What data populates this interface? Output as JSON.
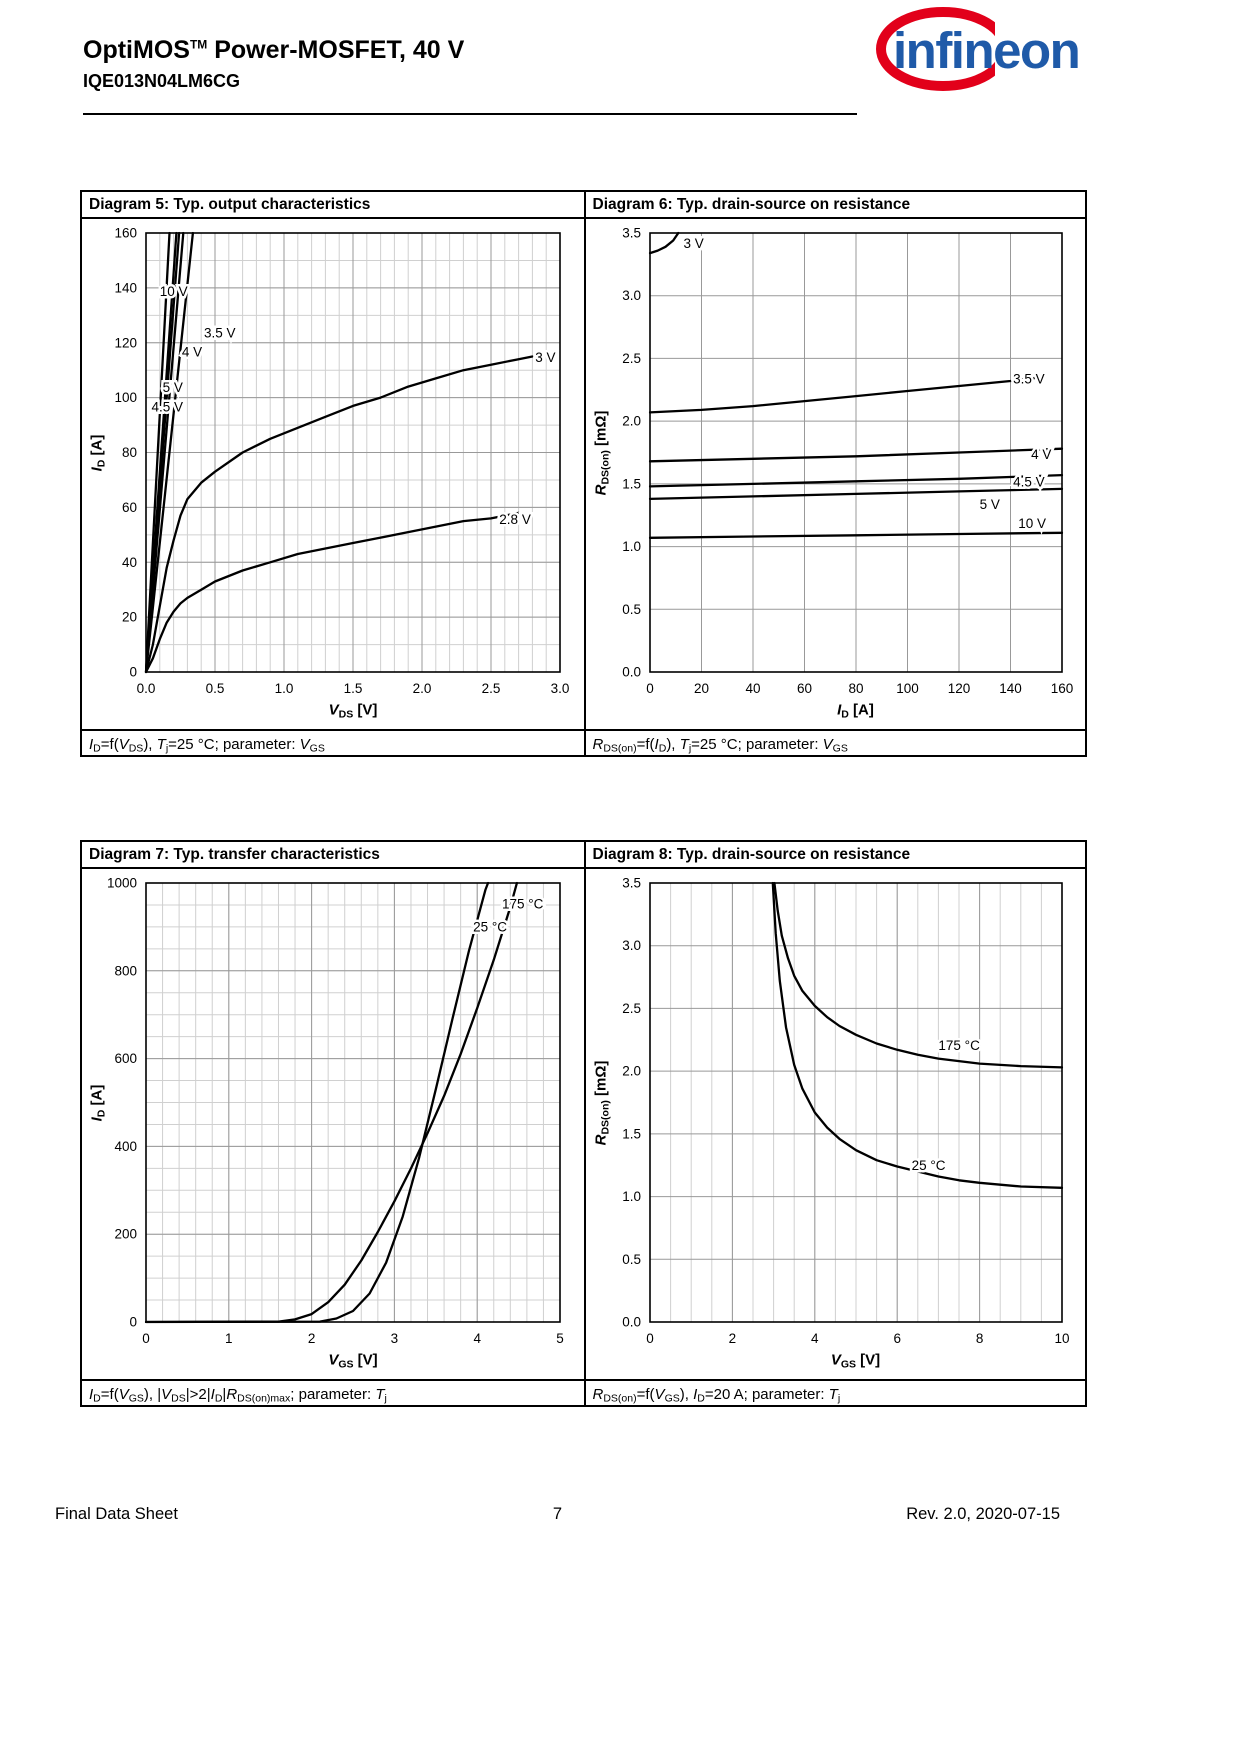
{
  "header": {
    "product_family": "OptiMOS",
    "trademark": "TM",
    "title_suffix": " Power-MOSFET, 40 V",
    "part_number": "IQE013N04LM6CG",
    "logo": {
      "text": "infineon",
      "blue": "#1F5AA8",
      "red": "#E2001A"
    }
  },
  "footer": {
    "left": "Final Data Sheet",
    "page_number": "7",
    "right": "Rev. 2.0,  2020-07-15"
  },
  "chart_data": [
    {
      "id": "diagram-5",
      "type": "line",
      "title": "Diagram 5: Typ. output characteristics",
      "caption": "*I*_D_=f(*V*_DS_), *T*_j_=25 °C; parameter: *V*_GS_",
      "xlabel": "*V*_DS_ [V]",
      "ylabel": "*I*_D_ [A]",
      "xlim": [
        0,
        3
      ],
      "ylim": [
        0,
        160
      ],
      "xticks": [
        0,
        0.5,
        1,
        1.5,
        2,
        2.5,
        3
      ],
      "xtick_labels": [
        "0.0",
        "0.5",
        "1.0",
        "1.5",
        "2.0",
        "2.5",
        "3.0"
      ],
      "yticks": [
        0,
        20,
        40,
        60,
        80,
        100,
        120,
        140,
        160
      ],
      "ytick_labels": [
        "0",
        "20",
        "40",
        "60",
        "80",
        "100",
        "120",
        "140",
        "160"
      ],
      "xminor": 0.1,
      "yminor": 10,
      "grid": true,
      "legend": "inline-labels",
      "series": [
        {
          "name": "10 V",
          "points": [
            [
              0,
              0
            ],
            [
              0.17,
              160
            ]
          ]
        },
        {
          "name": "5 V",
          "points": [
            [
              0,
              0
            ],
            [
              0.22,
              160
            ]
          ]
        },
        {
          "name": "4.5 V",
          "points": [
            [
              0,
              0
            ],
            [
              0.24,
              160
            ]
          ]
        },
        {
          "name": "4 V",
          "points": [
            [
              0,
              0
            ],
            [
              0.27,
              160
            ]
          ]
        },
        {
          "name": "3.5 V",
          "points": [
            [
              0,
              0
            ],
            [
              0.34,
              160
            ]
          ]
        },
        {
          "name": "3 V",
          "points": [
            [
              0,
              0
            ],
            [
              0.05,
              10
            ],
            [
              0.1,
              24
            ],
            [
              0.15,
              38
            ],
            [
              0.2,
              48
            ],
            [
              0.25,
              57
            ],
            [
              0.3,
              63
            ],
            [
              0.4,
              69
            ],
            [
              0.5,
              73
            ],
            [
              0.7,
              80
            ],
            [
              0.9,
              85
            ],
            [
              1.1,
              89
            ],
            [
              1.3,
              93
            ],
            [
              1.5,
              97
            ],
            [
              1.7,
              100
            ],
            [
              1.9,
              104
            ],
            [
              2.1,
              107
            ],
            [
              2.3,
              110
            ],
            [
              2.5,
              112
            ],
            [
              2.7,
              114
            ],
            [
              2.8,
              115
            ]
          ]
        },
        {
          "name": "2.8 V",
          "points": [
            [
              0,
              0
            ],
            [
              0.05,
              5
            ],
            [
              0.1,
              12
            ],
            [
              0.15,
              18
            ],
            [
              0.2,
              22
            ],
            [
              0.25,
              25
            ],
            [
              0.3,
              27
            ],
            [
              0.4,
              30
            ],
            [
              0.5,
              33
            ],
            [
              0.7,
              37
            ],
            [
              0.9,
              40
            ],
            [
              1.1,
              43
            ],
            [
              1.3,
              45
            ],
            [
              1.5,
              47
            ],
            [
              1.7,
              49
            ],
            [
              1.9,
              51
            ],
            [
              2.1,
              53
            ],
            [
              2.3,
              55
            ],
            [
              2.5,
              56
            ],
            [
              2.7,
              58
            ]
          ]
        }
      ],
      "curve_labels": [
        {
          "text": "10 V",
          "x": 0.1,
          "y": 137
        },
        {
          "text": "3.5 V",
          "x": 0.42,
          "y": 122
        },
        {
          "text": "4 V",
          "x": 0.26,
          "y": 115
        },
        {
          "text": "5 V",
          "x": 0.12,
          "y": 102
        },
        {
          "text": "4.5 V",
          "x": 0.04,
          "y": 95
        },
        {
          "text": "3 V",
          "x": 2.82,
          "y": 113
        },
        {
          "text": "2.8 V",
          "x": 2.56,
          "y": 54
        }
      ]
    },
    {
      "id": "diagram-6",
      "type": "line",
      "title": "Diagram 6: Typ. drain-source on resistance",
      "caption": "*R*_DS(on)_=f(*I*_D_), *T*_j_=25 °C; parameter: *V*_GS_",
      "xlabel": "*I*_D_ [A]",
      "ylabel": "*R*_DS(on)_ [mΩ]",
      "xlim": [
        0,
        160
      ],
      "ylim": [
        0,
        3.5
      ],
      "xticks": [
        0,
        20,
        40,
        60,
        80,
        100,
        120,
        140,
        160
      ],
      "xtick_labels": [
        "0",
        "20",
        "40",
        "60",
        "80",
        "100",
        "120",
        "140",
        "160"
      ],
      "yticks": [
        0,
        0.5,
        1,
        1.5,
        2,
        2.5,
        3,
        3.5
      ],
      "ytick_labels": [
        "0.0",
        "0.5",
        "1.0",
        "1.5",
        "2.0",
        "2.5",
        "3.0",
        "3.5"
      ],
      "grid": true,
      "legend": "inline-labels",
      "series": [
        {
          "name": "3 V",
          "points": [
            [
              0,
              3.34
            ],
            [
              3,
              3.36
            ],
            [
              6,
              3.39
            ],
            [
              9,
              3.44
            ],
            [
              11,
              3.5
            ]
          ]
        },
        {
          "name": "3.5 V",
          "points": [
            [
              0,
              2.07
            ],
            [
              20,
              2.09
            ],
            [
              40,
              2.12
            ],
            [
              60,
              2.16
            ],
            [
              80,
              2.2
            ],
            [
              100,
              2.24
            ],
            [
              120,
              2.28
            ],
            [
              140,
              2.32
            ],
            [
              152,
              2.35
            ]
          ]
        },
        {
          "name": "4 V",
          "points": [
            [
              0,
              1.68
            ],
            [
              40,
              1.7
            ],
            [
              80,
              1.72
            ],
            [
              120,
              1.75
            ],
            [
              160,
              1.78
            ]
          ]
        },
        {
          "name": "4.5 V",
          "points": [
            [
              0,
              1.48
            ],
            [
              40,
              1.5
            ],
            [
              80,
              1.52
            ],
            [
              120,
              1.54
            ],
            [
              160,
              1.57
            ]
          ]
        },
        {
          "name": "5 V",
          "points": [
            [
              0,
              1.38
            ],
            [
              40,
              1.4
            ],
            [
              80,
              1.42
            ],
            [
              120,
              1.44
            ],
            [
              160,
              1.46
            ]
          ]
        },
        {
          "name": "10 V",
          "points": [
            [
              0,
              1.07
            ],
            [
              40,
              1.08
            ],
            [
              80,
              1.09
            ],
            [
              120,
              1.1
            ],
            [
              160,
              1.11
            ]
          ]
        }
      ],
      "curve_labels": [
        {
          "text": "3 V",
          "x": 13,
          "y": 3.38
        },
        {
          "text": "3.5 V",
          "x": 141,
          "y": 2.3
        },
        {
          "text": "4 V",
          "x": 148,
          "y": 1.7
        },
        {
          "text": "4.5 V",
          "x": 141,
          "y": 1.48
        },
        {
          "text": "5 V",
          "x": 128,
          "y": 1.3
        },
        {
          "text": "10 V",
          "x": 143,
          "y": 1.15
        }
      ]
    },
    {
      "id": "diagram-7",
      "type": "line",
      "title": "Diagram 7: Typ. transfer characteristics",
      "caption": "*I*_D_=f(*V*_GS_), |*V*_DS_|>2|*I*_D_|*R*_DS(on)max_; parameter: *T*_j_",
      "xlabel": "*V*_GS_ [V]",
      "ylabel": "*I*_D_ [A]",
      "xlim": [
        0,
        5
      ],
      "ylim": [
        0,
        1000
      ],
      "xticks": [
        0,
        1,
        2,
        3,
        4,
        5
      ],
      "xtick_labels": [
        "0",
        "1",
        "2",
        "3",
        "4",
        "5"
      ],
      "yticks": [
        0,
        200,
        400,
        600,
        800,
        1000
      ],
      "ytick_labels": [
        "0",
        "200",
        "400",
        "600",
        "800",
        "1000"
      ],
      "xminor": 0.2,
      "yminor": 50,
      "grid": true,
      "legend": "inline-labels",
      "series": [
        {
          "name": "175 °C",
          "points": [
            [
              0,
              0
            ],
            [
              1.6,
              1
            ],
            [
              1.8,
              6
            ],
            [
              2.0,
              18
            ],
            [
              2.2,
              45
            ],
            [
              2.4,
              85
            ],
            [
              2.6,
              140
            ],
            [
              2.8,
              205
            ],
            [
              3.0,
              275
            ],
            [
              3.2,
              350
            ],
            [
              3.4,
              430
            ],
            [
              3.6,
              515
            ],
            [
              3.8,
              610
            ],
            [
              4.0,
              715
            ],
            [
              4.2,
              825
            ],
            [
              4.4,
              945
            ],
            [
              4.48,
              1000
            ]
          ]
        },
        {
          "name": "25 °C",
          "points": [
            [
              0,
              0
            ],
            [
              2.1,
              1
            ],
            [
              2.3,
              8
            ],
            [
              2.5,
              25
            ],
            [
              2.7,
              65
            ],
            [
              2.9,
              135
            ],
            [
              3.1,
              240
            ],
            [
              3.3,
              375
            ],
            [
              3.5,
              530
            ],
            [
              3.7,
              690
            ],
            [
              3.9,
              845
            ],
            [
              4.1,
              985
            ],
            [
              4.13,
              1000
            ]
          ]
        }
      ],
      "curve_labels": [
        {
          "text": "175 °C",
          "x": 4.3,
          "y": 942
        },
        {
          "text": "25 °C",
          "x": 3.95,
          "y": 890
        }
      ]
    },
    {
      "id": "diagram-8",
      "type": "line",
      "title": "Diagram 8: Typ. drain-source on resistance",
      "caption": "*R*_DS(on)_=f(*V*_GS_), *I*_D_=20 A; parameter: *T*_j_",
      "xlabel": "*V*_GS_ [V]",
      "ylabel": "*R*_DS(on)_ [mΩ]",
      "xlim": [
        0,
        10
      ],
      "ylim": [
        0,
        3.5
      ],
      "xticks": [
        0,
        2,
        4,
        6,
        8,
        10
      ],
      "xtick_labels": [
        "0",
        "2",
        "4",
        "6",
        "8",
        "10"
      ],
      "yticks": [
        0,
        0.5,
        1,
        1.5,
        2,
        2.5,
        3,
        3.5
      ],
      "ytick_labels": [
        "0.0",
        "0.5",
        "1.0",
        "1.5",
        "2.0",
        "2.5",
        "3.0",
        "3.5"
      ],
      "xminor": 0.5,
      "grid": true,
      "legend": "inline-labels",
      "series": [
        {
          "name": "175 °C",
          "points": [
            [
              3.02,
              3.5
            ],
            [
              3.1,
              3.28
            ],
            [
              3.2,
              3.08
            ],
            [
              3.35,
              2.9
            ],
            [
              3.5,
              2.76
            ],
            [
              3.7,
              2.64
            ],
            [
              4.0,
              2.52
            ],
            [
              4.3,
              2.43
            ],
            [
              4.6,
              2.36
            ],
            [
              5.0,
              2.29
            ],
            [
              5.5,
              2.22
            ],
            [
              6.0,
              2.17
            ],
            [
              6.5,
              2.13
            ],
            [
              7.0,
              2.1
            ],
            [
              7.5,
              2.08
            ],
            [
              8.0,
              2.06
            ],
            [
              9.0,
              2.04
            ],
            [
              10,
              2.03
            ]
          ]
        },
        {
          "name": "25 °C",
          "points": [
            [
              2.98,
              3.5
            ],
            [
              3.05,
              3.1
            ],
            [
              3.15,
              2.72
            ],
            [
              3.3,
              2.35
            ],
            [
              3.5,
              2.05
            ],
            [
              3.7,
              1.86
            ],
            [
              4.0,
              1.67
            ],
            [
              4.3,
              1.55
            ],
            [
              4.6,
              1.46
            ],
            [
              5.0,
              1.37
            ],
            [
              5.5,
              1.29
            ],
            [
              6.0,
              1.24
            ],
            [
              6.5,
              1.2
            ],
            [
              7.0,
              1.16
            ],
            [
              7.5,
              1.13
            ],
            [
              8.0,
              1.11
            ],
            [
              9.0,
              1.08
            ],
            [
              10,
              1.07
            ]
          ]
        }
      ],
      "curve_labels": [
        {
          "text": "175 °C",
          "x": 7.0,
          "y": 2.17
        },
        {
          "text": "25 °C",
          "x": 6.35,
          "y": 1.21
        }
      ]
    }
  ]
}
